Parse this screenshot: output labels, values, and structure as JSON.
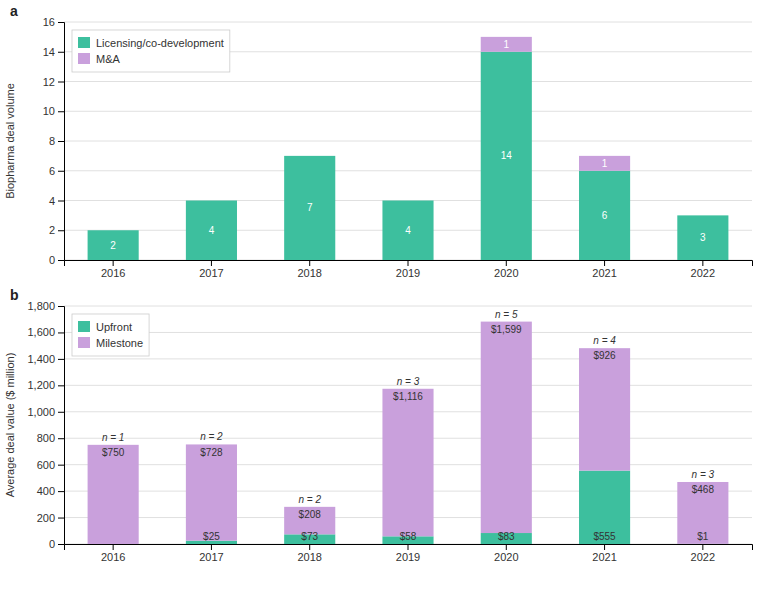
{
  "chart_data": [
    {
      "type": "bar",
      "title": "a",
      "stacked": true,
      "grid": true,
      "legend": "upper left",
      "data_labels": true,
      "categories": [
        "2016",
        "2017",
        "2018",
        "2019",
        "2020",
        "2021",
        "2022"
      ],
      "series": [
        {
          "name": "Licensing/co-development",
          "color": "#3dbf9e",
          "values": [
            2,
            4,
            7,
            4,
            14,
            6,
            3
          ]
        },
        {
          "name": "M&A",
          "color": "#c9a0dc",
          "values": [
            0,
            0,
            0,
            0,
            1,
            1,
            0
          ]
        }
      ],
      "ylabel": "Biopharma deal volume",
      "ylim": [
        0,
        16
      ],
      "yticks": [
        0,
        2,
        4,
        6,
        8,
        10,
        12,
        14,
        16
      ]
    },
    {
      "type": "bar",
      "title": "b",
      "stacked": true,
      "grid": true,
      "legend": "upper left",
      "data_labels": true,
      "categories": [
        "2016",
        "2017",
        "2018",
        "2019",
        "2020",
        "2021",
        "2022"
      ],
      "series": [
        {
          "name": "Upfront",
          "color": "#3dbf9e",
          "values": [
            0,
            25,
            73,
            58,
            83,
            555,
            1
          ],
          "value_labels": [
            null,
            "$25",
            "$73",
            "$58",
            "$83",
            "$555",
            "$1"
          ]
        },
        {
          "name": "Milestone",
          "color": "#c9a0dc",
          "values": [
            750,
            728,
            208,
            1116,
            1599,
            926,
            468
          ],
          "value_labels": [
            "$750",
            "$728",
            "$208",
            "$1,116",
            "$1,599",
            "$926",
            "$468"
          ]
        }
      ],
      "annotations": [
        "n = 1",
        "n = 2",
        "n = 2",
        "n = 3",
        "n = 5",
        "n = 4",
        "n = 3"
      ],
      "ylabel": "Average deal value ($ million)",
      "ylim": [
        0,
        1800
      ],
      "yticks": [
        0,
        200,
        400,
        600,
        800,
        {
          "value": 1000,
          "label": "1,000"
        },
        {
          "value": 1200,
          "label": "1,200"
        },
        {
          "value": 1400,
          "label": "1,400"
        },
        {
          "value": 1600,
          "label": "1,600"
        },
        {
          "value": 1800,
          "label": "1,800"
        }
      ]
    }
  ]
}
